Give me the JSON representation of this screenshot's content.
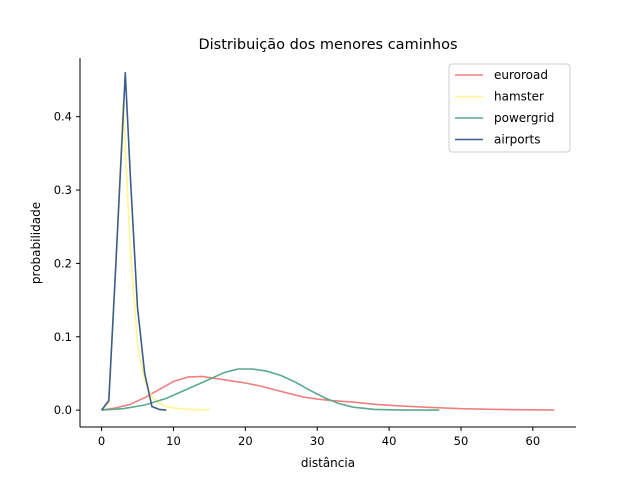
{
  "chart_data": {
    "type": "line",
    "title": "Distribuição dos menores caminhos",
    "xlabel": "distância",
    "ylabel": "probabilidade",
    "xlim": [
      -3,
      66
    ],
    "ylim": [
      -0.023,
      0.48
    ],
    "xticks": [
      0,
      10,
      20,
      30,
      40,
      50,
      60
    ],
    "yticks": [
      0.0,
      0.1,
      0.2,
      0.3,
      0.4
    ],
    "ytick_labels": [
      "0.0",
      "0.1",
      "0.2",
      "0.3",
      "0.4"
    ],
    "legend_position": "top-right",
    "grid": false,
    "series": [
      {
        "name": "euroroad",
        "color": "#f08080",
        "x": [
          0,
          2,
          4,
          6,
          8,
          10,
          12,
          14,
          16,
          18,
          20,
          22,
          24,
          26,
          28,
          30,
          32,
          35,
          38,
          41,
          45,
          50,
          55,
          60,
          63
        ],
        "y": [
          0.0,
          0.003,
          0.008,
          0.017,
          0.028,
          0.039,
          0.045,
          0.046,
          0.043,
          0.04,
          0.037,
          0.033,
          0.028,
          0.023,
          0.018,
          0.015,
          0.013,
          0.011,
          0.008,
          0.006,
          0.004,
          0.002,
          0.001,
          0.0005,
          0.0
        ]
      },
      {
        "name": "hamster",
        "color": "#fff68f",
        "x": [
          0,
          1,
          2,
          3,
          4,
          5,
          6,
          7,
          8,
          9,
          10,
          12,
          15
        ],
        "y": [
          0.0,
          0.01,
          0.2,
          0.42,
          0.22,
          0.09,
          0.04,
          0.018,
          0.009,
          0.005,
          0.003,
          0.001,
          0.0
        ]
      },
      {
        "name": "powergrid",
        "color": "#5aaa8c",
        "x": [
          0,
          3,
          6,
          9,
          12,
          15,
          17,
          19,
          21,
          23,
          25,
          27,
          29,
          31,
          33,
          35,
          38,
          41,
          44,
          47
        ],
        "y": [
          0.0,
          0.002,
          0.007,
          0.016,
          0.029,
          0.042,
          0.051,
          0.056,
          0.056,
          0.053,
          0.047,
          0.038,
          0.027,
          0.017,
          0.009,
          0.004,
          0.001,
          0.0003,
          0.0001,
          0.0
        ]
      },
      {
        "name": "airports",
        "color": "#3b5c8c",
        "x": [
          0,
          1,
          2,
          3.3,
          4,
          5,
          6,
          7,
          8,
          9
        ],
        "y": [
          0.0,
          0.013,
          0.2,
          0.46,
          0.32,
          0.14,
          0.05,
          0.005,
          0.001,
          0.0
        ]
      }
    ]
  }
}
